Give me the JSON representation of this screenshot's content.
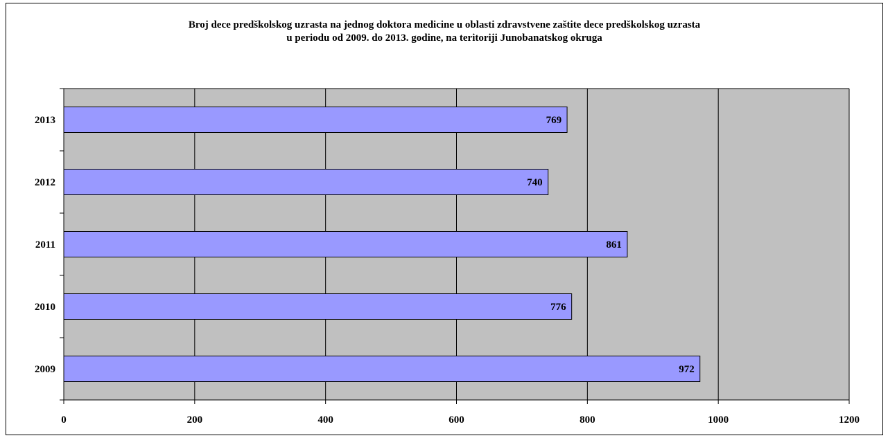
{
  "chart_data": {
    "type": "bar",
    "orientation": "horizontal",
    "title_lines": [
      "Broj dece predškolskog uzrasta na jednog doktora medicine u oblasti zdravstvene zaštite dece predškolskog uzrasta",
      "u periodu od 2009. do  2013. godine, na teritoriji Junobanatskog okruga"
    ],
    "categories": [
      "2013",
      "2012",
      "2011",
      "2010",
      "2009"
    ],
    "values": [
      769,
      740,
      861,
      776,
      972
    ],
    "xlim": [
      0,
      1200
    ],
    "x_ticks": [
      "0",
      "200",
      "400",
      "600",
      "800",
      "1000",
      "1200"
    ],
    "grid": true,
    "legend": "none",
    "colors": {
      "bar_fill": "#9999ff",
      "bar_stroke": "#000000",
      "plot_background": "#c0c0c0",
      "grid": "#000000"
    }
  }
}
